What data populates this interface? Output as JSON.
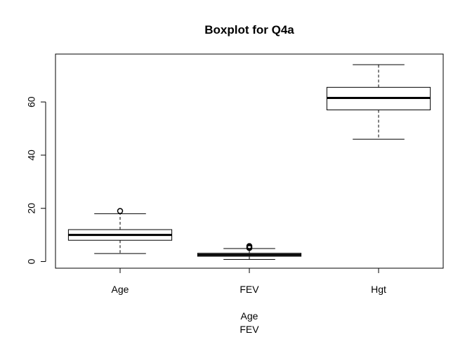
{
  "chart_data": {
    "type": "boxplot",
    "title": "Boxplot for Q4a",
    "xlabel_lines": [
      "Age",
      "FEV"
    ],
    "ylabel": "",
    "ylim": [
      -2.5,
      78
    ],
    "yticks": [
      0,
      20,
      40,
      60
    ],
    "grid": false,
    "categories": [
      "Age",
      "FEV",
      "Hgt"
    ],
    "boxes": [
      {
        "name": "Age",
        "whisker_low": 3,
        "q1": 8,
        "median": 10,
        "q3": 12,
        "whisker_high": 18,
        "outliers": [
          19
        ]
      },
      {
        "name": "FEV",
        "whisker_low": 0.8,
        "q1": 1.98,
        "median": 2.55,
        "q3": 3.12,
        "whisker_high": 4.9,
        "outliers": [
          5.1,
          5.4,
          5.8
        ]
      },
      {
        "name": "Hgt",
        "whisker_low": 46,
        "q1": 57,
        "median": 61.5,
        "q3": 65.5,
        "whisker_high": 74,
        "outliers": []
      }
    ]
  }
}
